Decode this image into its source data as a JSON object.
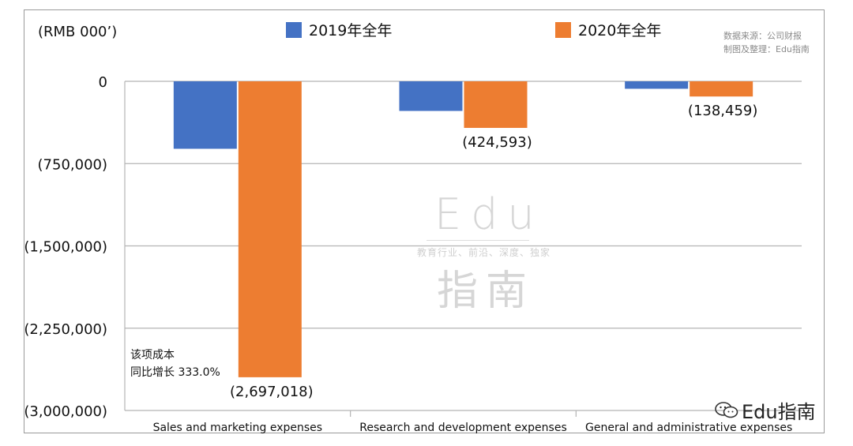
{
  "chart_data": {
    "type": "bar",
    "unit_label": "(RMB 000’)",
    "categories": [
      "Sales and marketing expenses",
      "Research and development expenses",
      "General and administrative expenses"
    ],
    "series": [
      {
        "name": "2019年全年",
        "color": "#4472C4",
        "values": [
          -615000,
          -270000,
          -68000
        ]
      },
      {
        "name": "2020年全年",
        "color": "#ED7D31",
        "values": [
          -2697018,
          -424593,
          -138459
        ]
      }
    ],
    "data_labels": [
      {
        "category": 0,
        "series": 1,
        "text": "(2,697,018)"
      },
      {
        "category": 1,
        "series": 1,
        "text": "(424,593)"
      },
      {
        "category": 2,
        "series": 1,
        "text": "(138,459)"
      }
    ],
    "yticks": [
      {
        "value": 0,
        "label": "0"
      },
      {
        "value": -750000,
        "label": "(750,000)"
      },
      {
        "value": -1500000,
        "label": "(1,500,000)"
      },
      {
        "value": -2250000,
        "label": "(2,250,000)"
      },
      {
        "value": -3000000,
        "label": "(3,000,000)"
      }
    ],
    "ylim": [
      -3000000,
      0
    ],
    "grid": true,
    "legend_position": "top"
  },
  "annotation": {
    "line1": "该项成本",
    "line2": "同比增长 333.0%"
  },
  "source": {
    "line1": "数据来源：公司财报",
    "line2": "制图及整理：Edu指南"
  },
  "watermark": {
    "main": "Edu",
    "sub": "教育行业、前沿、深度、独家",
    "cn": "指南"
  },
  "brand": {
    "text": "Edu指南",
    "icon": "wechat-icon"
  }
}
